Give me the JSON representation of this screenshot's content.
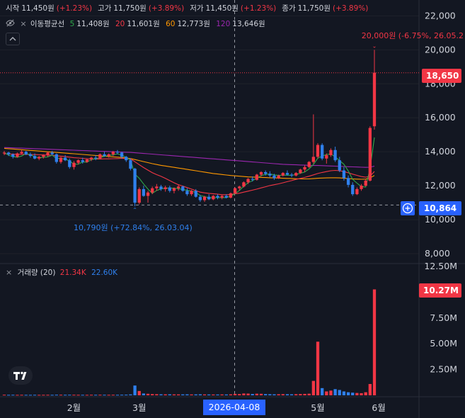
{
  "ohlc": {
    "open_label": "시작",
    "open": "11,450원",
    "open_pct": "(+1.23%)",
    "high_label": "고가",
    "high": "11,750원",
    "high_pct": "(+3.89%)",
    "low_label": "저가",
    "low": "11,450원",
    "low_pct": "(+1.23%)",
    "close_label": "종가",
    "close": "11,750원",
    "close_pct": "(+3.89%)"
  },
  "ma_legend": {
    "label": "이동평균선",
    "items": [
      {
        "period": "5",
        "value": "11,408원",
        "color": "#2ea84a"
      },
      {
        "period": "20",
        "value": "11,601원",
        "color": "#f23645"
      },
      {
        "period": "60",
        "value": "12,773원",
        "color": "#ff9800"
      },
      {
        "period": "120",
        "value": "13,646원",
        "color": "#9c27b0"
      }
    ]
  },
  "volume_legend": {
    "label": "거래량 (20)",
    "value_a": "21.34K",
    "value_b": "22.60K"
  },
  "annotations": {
    "high": "20,000원 (-6.75%, 26.05.2",
    "low": "10,790원 (+72.84%, 26.03.04)"
  },
  "tags": {
    "last_price": "18,650",
    "crosshair_price": "10,864",
    "volume": "10.27M",
    "crosshair_date": "2026-04-08"
  },
  "colors": {
    "up": "#f23645",
    "down": "#2f80ed",
    "background": "#131722",
    "grid": "#1f222b",
    "crosshair_tag": "#2962ff"
  },
  "chart_data": {
    "type": "candlestick",
    "price_axis": {
      "ticks": [
        "22,000",
        "20,000",
        "18,000",
        "16,000",
        "14,000",
        "12,000",
        "10,000",
        "8,000"
      ],
      "ylim": [
        7500,
        22600
      ]
    },
    "volume_axis": {
      "ticks": [
        "12.50M",
        "10.00M",
        "7.50M",
        "5.00M",
        "2.50M"
      ],
      "ylim": [
        0,
        12500000
      ]
    },
    "x_ticks": [
      "2월",
      "3월",
      "5월",
      "6월"
    ],
    "candles": [
      [
        13900,
        14050,
        13800,
        13950
      ],
      [
        13950,
        14000,
        13750,
        13850
      ],
      [
        13850,
        13900,
        13600,
        13700
      ],
      [
        13700,
        13950,
        13650,
        13900
      ],
      [
        13900,
        14100,
        13850,
        14000
      ],
      [
        14000,
        14050,
        13800,
        13850
      ],
      [
        13850,
        13950,
        13650,
        13750
      ],
      [
        13750,
        13900,
        13550,
        13600
      ],
      [
        13600,
        13750,
        13500,
        13700
      ],
      [
        13700,
        13850,
        13600,
        13800
      ],
      [
        13800,
        14000,
        13700,
        13950
      ],
      [
        13950,
        14050,
        13800,
        13850
      ],
      [
        13850,
        13900,
        13300,
        13400
      ],
      [
        13400,
        13700,
        13300,
        13650
      ],
      [
        13650,
        13800,
        13450,
        13500
      ],
      [
        13500,
        13600,
        13000,
        13100
      ],
      [
        13100,
        13450,
        12950,
        13350
      ],
      [
        13350,
        13550,
        13250,
        13500
      ],
      [
        13500,
        13650,
        13300,
        13400
      ],
      [
        13400,
        13600,
        13350,
        13550
      ],
      [
        13550,
        13700,
        13450,
        13650
      ],
      [
        13650,
        13800,
        13500,
        13600
      ],
      [
        13600,
        13900,
        13550,
        13850
      ],
      [
        13850,
        14000,
        13700,
        13750
      ],
      [
        13750,
        13900,
        13650,
        13850
      ],
      [
        13850,
        14050,
        13750,
        14000
      ],
      [
        14000,
        14100,
        13850,
        13950
      ],
      [
        13950,
        14000,
        13600,
        13700
      ],
      [
        13700,
        13750,
        13400,
        13500
      ],
      [
        13500,
        13600,
        12900,
        13000
      ],
      [
        13000,
        13050,
        10790,
        11000
      ],
      [
        11000,
        11900,
        10900,
        11800
      ],
      [
        11800,
        12000,
        11350,
        11400
      ],
      [
        11400,
        11700,
        11000,
        11600
      ],
      [
        11600,
        11950,
        11500,
        11850
      ],
      [
        11850,
        12100,
        11700,
        11950
      ],
      [
        11950,
        12050,
        11700,
        11800
      ],
      [
        11800,
        12000,
        11650,
        11900
      ],
      [
        11900,
        12000,
        11600,
        11700
      ],
      [
        11700,
        11900,
        11550,
        11850
      ],
      [
        11850,
        12050,
        11700,
        11950
      ],
      [
        11950,
        12000,
        11650,
        11700
      ],
      [
        11700,
        11850,
        11400,
        11500
      ],
      [
        11500,
        11750,
        11400,
        11700
      ],
      [
        11700,
        11800,
        11300,
        11350
      ],
      [
        11350,
        11450,
        11050,
        11150
      ],
      [
        11150,
        11400,
        11050,
        11350
      ],
      [
        11350,
        11500,
        11150,
        11200
      ],
      [
        11200,
        11450,
        11150,
        11400
      ],
      [
        11400,
        11500,
        11200,
        11300
      ],
      [
        11300,
        11450,
        11200,
        11400
      ],
      [
        11400,
        11500,
        11250,
        11300
      ],
      [
        11300,
        11600,
        11250,
        11550
      ],
      [
        11550,
        11900,
        11500,
        11850
      ],
      [
        11850,
        12000,
        11700,
        11950
      ],
      [
        11950,
        12250,
        11900,
        12200
      ],
      [
        12200,
        12450,
        12100,
        12400
      ],
      [
        12400,
        12550,
        12250,
        12350
      ],
      [
        12350,
        12700,
        12300,
        12650
      ],
      [
        12650,
        12850,
        12550,
        12800
      ],
      [
        12800,
        12900,
        12600,
        12700
      ],
      [
        12700,
        12850,
        12500,
        12600
      ],
      [
        12600,
        12700,
        12350,
        12450
      ],
      [
        12450,
        12650,
        12400,
        12600
      ],
      [
        12600,
        12800,
        12550,
        12750
      ],
      [
        12750,
        12900,
        12600,
        12650
      ],
      [
        12650,
        12750,
        12500,
        12600
      ],
      [
        12600,
        12800,
        12550,
        12750
      ],
      [
        12750,
        13000,
        12700,
        12950
      ],
      [
        12950,
        13200,
        12800,
        13100
      ],
      [
        13100,
        13450,
        13050,
        13400
      ],
      [
        13400,
        16200,
        13300,
        13700
      ],
      [
        13700,
        14500,
        13600,
        14400
      ],
      [
        14400,
        14500,
        13500,
        13600
      ],
      [
        13600,
        13900,
        13300,
        13800
      ],
      [
        13800,
        14200,
        13700,
        14100
      ],
      [
        14100,
        14300,
        13400,
        13500
      ],
      [
        13500,
        13700,
        12800,
        12900
      ],
      [
        12900,
        13100,
        12300,
        12450
      ],
      [
        12450,
        12600,
        11900,
        12050
      ],
      [
        12050,
        12200,
        11400,
        11500
      ],
      [
        11500,
        11900,
        11450,
        11800
      ],
      [
        11800,
        12100,
        11700,
        12000
      ],
      [
        12000,
        12400,
        11950,
        12300
      ],
      [
        12300,
        15500,
        12250,
        15400
      ],
      [
        15500,
        20000,
        15300,
        18650
      ]
    ],
    "volume": [
      60000,
      50000,
      55000,
      48000,
      52000,
      50000,
      47000,
      53000,
      49000,
      51000,
      54000,
      50000,
      62000,
      58000,
      55000,
      60000,
      57000,
      53000,
      52000,
      50000,
      56000,
      54000,
      58000,
      55000,
      52000,
      57000,
      53000,
      60000,
      65000,
      90000,
      950000,
      420000,
      180000,
      150000,
      120000,
      110000,
      100000,
      95000,
      98000,
      90000,
      88000,
      92000,
      96000,
      85000,
      90000,
      100000,
      87000,
      84000,
      82000,
      80000,
      86000,
      83000,
      95000,
      140000,
      120000,
      180000,
      170000,
      130000,
      160000,
      150000,
      120000,
      110000,
      100000,
      105000,
      115000,
      108000,
      100000,
      112000,
      125000,
      140000,
      160000,
      1400000,
      5200000,
      700000,
      380000,
      460000,
      600000,
      520000,
      380000,
      300000,
      260000,
      230000,
      210000,
      300000,
      1100000,
      10270000
    ],
    "ma5": [
      13950,
      13800,
      13710,
      13670,
      13750,
      13890,
      13830,
      13700,
      13640,
      13670,
      13700,
      13800,
      13600,
      13620,
      13550,
      13470,
      13260,
      13270,
      13400,
      13380,
      13540,
      13580,
      13650,
      13730,
      13780,
      13810,
      13880,
      13790,
      13670,
      13510,
      12680,
      12440,
      12100,
      11800,
      11550,
      11720,
      11810,
      11860,
      11860,
      11860,
      11820,
      11780,
      11730,
      11690,
      11600,
      11420,
      11360,
      11290,
      11300,
      11300,
      11300,
      11300,
      11390,
      11530,
      11720,
      11970,
      12180,
      12290,
      12460,
      12590,
      12670,
      12690,
      12640,
      12610,
      12620,
      12620,
      12610,
      12660,
      12730,
      12810,
      12990,
      13250,
      13620,
      13740,
      13840,
      13860,
      13700,
      13480,
      13260,
      12870,
      12380,
      12150,
      11950,
      11920,
      13000,
      14840
    ],
    "ma20": [
      13880,
      13870,
      13860,
      13850,
      13850,
      13850,
      13840,
      13830,
      13820,
      13810,
      13800,
      13790,
      13760,
      13740,
      13710,
      13680,
      13650,
      13630,
      13610,
      13590,
      13580,
      13570,
      13570,
      13580,
      13580,
      13590,
      13600,
      13610,
      13600,
      13580,
      13410,
      13240,
      13070,
      12920,
      12770,
      12650,
      12550,
      12430,
      12300,
      12170,
      12060,
      11980,
      11890,
      11800,
      11710,
      11620,
      11580,
      11550,
      11530,
      11500,
      11470,
      11470,
      11480,
      11520,
      11560,
      11620,
      11680,
      11740,
      11800,
      11870,
      11940,
      12010,
      12060,
      12110,
      12170,
      12240,
      12300,
      12370,
      12430,
      12490,
      12560,
      12640,
      12720,
      12780,
      12830,
      12880,
      12900,
      12880,
      12830,
      12760,
      12680,
      12610,
      12540,
      12500,
      12560,
      12840
    ],
    "ma60": [
      14200,
      14180,
      14160,
      14140,
      14120,
      14100,
      14080,
      14060,
      14040,
      14020,
      14000,
      13980,
      13960,
      13940,
      13920,
      13900,
      13880,
      13860,
      13840,
      13820,
      13800,
      13780,
      13760,
      13740,
      13720,
      13700,
      13680,
      13660,
      13630,
      13600,
      13540,
      13480,
      13420,
      13360,
      13300,
      13250,
      13200,
      13160,
      13120,
      13080,
      13040,
      13000,
      12960,
      12920,
      12880,
      12840,
      12800,
      12760,
      12720,
      12690,
      12660,
      12630,
      12600,
      12580,
      12560,
      12540,
      12520,
      12510,
      12500,
      12490,
      12480,
      12470,
      12460,
      12450,
      12440,
      12430,
      12420,
      12410,
      12400,
      12400,
      12400,
      12420,
      12440,
      12450,
      12460,
      12470,
      12470,
      12460,
      12440,
      12420,
      12400,
      12390,
      12380,
      12390,
      12460,
      12600
    ],
    "ma120": [
      14250,
      14240,
      14230,
      14220,
      14210,
      14200,
      14190,
      14180,
      14170,
      14160,
      14150,
      14140,
      14130,
      14120,
      14110,
      14100,
      14090,
      14080,
      14070,
      14060,
      14050,
      14040,
      14030,
      14020,
      14010,
      14000,
      13990,
      13980,
      13970,
      13960,
      13940,
      13920,
      13900,
      13880,
      13860,
      13840,
      13820,
      13800,
      13780,
      13760,
      13740,
      13720,
      13700,
      13680,
      13660,
      13640,
      13620,
      13600,
      13580,
      13560,
      13540,
      13520,
      13500,
      13480,
      13460,
      13440,
      13420,
      13400,
      13380,
      13360,
      13340,
      13320,
      13300,
      13280,
      13260,
      13250,
      13240,
      13230,
      13220,
      13210,
      13200,
      13190,
      13190,
      13180,
      13170,
      13160,
      13150,
      13140,
      13130,
      13120,
      13110,
      13100,
      13090,
      13080,
      13090,
      13150
    ]
  }
}
